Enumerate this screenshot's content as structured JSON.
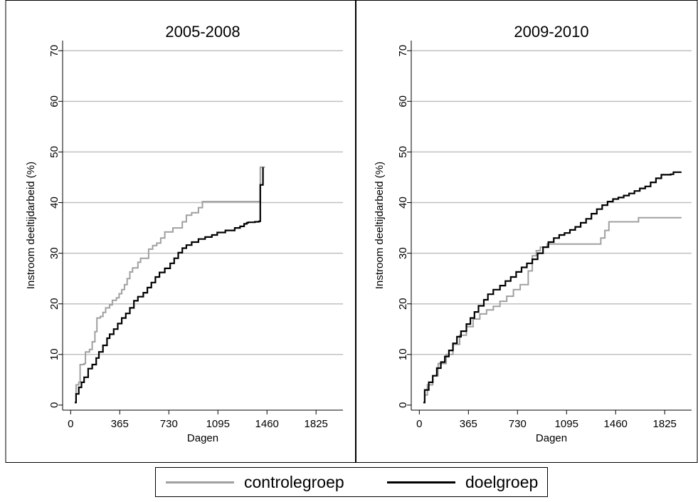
{
  "legend": {
    "items": [
      {
        "name": "controlegroep",
        "color": "#a0a0a0"
      },
      {
        "name": "doelgroep",
        "color": "#000000"
      }
    ]
  },
  "chart_data": [
    {
      "type": "line",
      "title": "2005-2008",
      "xlabel": "Dagen",
      "ylabel": "Instroom deeltijdarbeid (%)",
      "xlim": [
        -60,
        2025
      ],
      "ylim": [
        -1,
        72
      ],
      "xticks": [
        0,
        365,
        730,
        1095,
        1460,
        1825
      ],
      "yticks": [
        0,
        10,
        20,
        30,
        40,
        50,
        60,
        70
      ],
      "grid": true,
      "step": true,
      "series": [
        {
          "name": "controlegroep",
          "color": "#a0a0a0",
          "points": [
            [
              30,
              0.5
            ],
            [
              40,
              4
            ],
            [
              60,
              4.5
            ],
            [
              70,
              8
            ],
            [
              100,
              8.2
            ],
            [
              110,
              10.5
            ],
            [
              140,
              11
            ],
            [
              160,
              12.5
            ],
            [
              180,
              14.5
            ],
            [
              195,
              17.2
            ],
            [
              220,
              17.5
            ],
            [
              240,
              18.3
            ],
            [
              260,
              19.2
            ],
            [
              290,
              19.8
            ],
            [
              310,
              20.7
            ],
            [
              340,
              21.2
            ],
            [
              360,
              22
            ],
            [
              380,
              22.8
            ],
            [
              400,
              23.8
            ],
            [
              420,
              25
            ],
            [
              440,
              26.3
            ],
            [
              460,
              27.1
            ],
            [
              500,
              28.2
            ],
            [
              520,
              29
            ],
            [
              580,
              30.8
            ],
            [
              610,
              31.5
            ],
            [
              640,
              32
            ],
            [
              670,
              33
            ],
            [
              700,
              34.2
            ],
            [
              760,
              35
            ],
            [
              830,
              36.2
            ],
            [
              860,
              37.5
            ],
            [
              900,
              38
            ],
            [
              950,
              39
            ],
            [
              980,
              40.2
            ],
            [
              1410,
              47
            ],
            [
              1445,
              47
            ]
          ]
        },
        {
          "name": "doelgroep",
          "color": "#000000",
          "points": [
            [
              30,
              0.5
            ],
            [
              40,
              2.2
            ],
            [
              60,
              3.5
            ],
            [
              80,
              4.5
            ],
            [
              100,
              5.5
            ],
            [
              130,
              7.2
            ],
            [
              160,
              8
            ],
            [
              190,
              9.3
            ],
            [
              210,
              10.5
            ],
            [
              240,
              11.8
            ],
            [
              270,
              13.2
            ],
            [
              290,
              14
            ],
            [
              320,
              15
            ],
            [
              350,
              16.1
            ],
            [
              380,
              17.2
            ],
            [
              410,
              18.1
            ],
            [
              440,
              19.2
            ],
            [
              470,
              20.6
            ],
            [
              500,
              21.4
            ],
            [
              540,
              22.2
            ],
            [
              570,
              23.2
            ],
            [
              600,
              24.2
            ],
            [
              630,
              25.3
            ],
            [
              660,
              26.2
            ],
            [
              700,
              27
            ],
            [
              740,
              28
            ],
            [
              770,
              29
            ],
            [
              800,
              30.1
            ],
            [
              830,
              31
            ],
            [
              860,
              31.6
            ],
            [
              900,
              32.2
            ],
            [
              950,
              32.8
            ],
            [
              1000,
              33.2
            ],
            [
              1050,
              33.6
            ],
            [
              1090,
              34.1
            ],
            [
              1150,
              34.5
            ],
            [
              1220,
              35
            ],
            [
              1260,
              35.3
            ],
            [
              1290,
              35.8
            ],
            [
              1310,
              36
            ],
            [
              1320,
              36.1
            ],
            [
              1370,
              36.2
            ],
            [
              1400,
              36.3
            ],
            [
              1410,
              43.5
            ],
            [
              1430,
              47
            ]
          ]
        }
      ]
    },
    {
      "type": "line",
      "title": "2009-2010",
      "xlabel": "Dagen",
      "ylabel": "Instroom deeltijdarbeid (%)",
      "xlim": [
        -60,
        2025
      ],
      "ylim": [
        -1,
        72
      ],
      "xticks": [
        0,
        365,
        730,
        1095,
        1460,
        1825
      ],
      "yticks": [
        0,
        10,
        20,
        30,
        40,
        50,
        60,
        70
      ],
      "grid": true,
      "step": true,
      "series": [
        {
          "name": "controlegroep",
          "color": "#a0a0a0",
          "points": [
            [
              30,
              0.5
            ],
            [
              40,
              2
            ],
            [
              60,
              4
            ],
            [
              100,
              5.8
            ],
            [
              140,
              8.2
            ],
            [
              200,
              10
            ],
            [
              250,
              12
            ],
            [
              300,
              13.8
            ],
            [
              350,
              15.5
            ],
            [
              400,
              17
            ],
            [
              450,
              18
            ],
            [
              500,
              18.8
            ],
            [
              550,
              19.5
            ],
            [
              600,
              20.5
            ],
            [
              650,
              21.5
            ],
            [
              700,
              22.8
            ],
            [
              750,
              23.8
            ],
            [
              810,
              26.5
            ],
            [
              840,
              29.5
            ],
            [
              870,
              30.5
            ],
            [
              900,
              31.2
            ],
            [
              950,
              31.8
            ],
            [
              1350,
              33
            ],
            [
              1380,
              34.5
            ],
            [
              1410,
              36.2
            ],
            [
              1630,
              37
            ],
            [
              1950,
              37
            ]
          ]
        },
        {
          "name": "doelgroep",
          "color": "#000000",
          "points": [
            [
              30,
              0.5
            ],
            [
              40,
              3
            ],
            [
              70,
              4.5
            ],
            [
              100,
              5.8
            ],
            [
              130,
              7.3
            ],
            [
              160,
              8.5
            ],
            [
              190,
              9.6
            ],
            [
              220,
              10.8
            ],
            [
              250,
              12.2
            ],
            [
              280,
              13.5
            ],
            [
              310,
              14.6
            ],
            [
              350,
              16
            ],
            [
              380,
              17.2
            ],
            [
              410,
              18.4
            ],
            [
              440,
              19.6
            ],
            [
              480,
              20.8
            ],
            [
              510,
              21.9
            ],
            [
              550,
              22.8
            ],
            [
              600,
              23.6
            ],
            [
              640,
              24.5
            ],
            [
              680,
              25.3
            ],
            [
              720,
              26.3
            ],
            [
              760,
              27.2
            ],
            [
              800,
              28
            ],
            [
              840,
              28.8
            ],
            [
              880,
              30
            ],
            [
              920,
              31.2
            ],
            [
              960,
              32.2
            ],
            [
              1000,
              33
            ],
            [
              1040,
              33.6
            ],
            [
              1080,
              34
            ],
            [
              1120,
              34.6
            ],
            [
              1160,
              35.2
            ],
            [
              1200,
              36
            ],
            [
              1240,
              36.8
            ],
            [
              1280,
              37.8
            ],
            [
              1320,
              38.7
            ],
            [
              1360,
              39.5
            ],
            [
              1400,
              40.2
            ],
            [
              1440,
              40.7
            ],
            [
              1480,
              41
            ],
            [
              1520,
              41.4
            ],
            [
              1560,
              41.8
            ],
            [
              1600,
              42.3
            ],
            [
              1640,
              42.8
            ],
            [
              1680,
              43.2
            ],
            [
              1720,
              44
            ],
            [
              1760,
              44.8
            ],
            [
              1800,
              45.5
            ],
            [
              1870,
              45.6
            ],
            [
              1890,
              46
            ],
            [
              1950,
              46
            ]
          ]
        }
      ]
    }
  ]
}
